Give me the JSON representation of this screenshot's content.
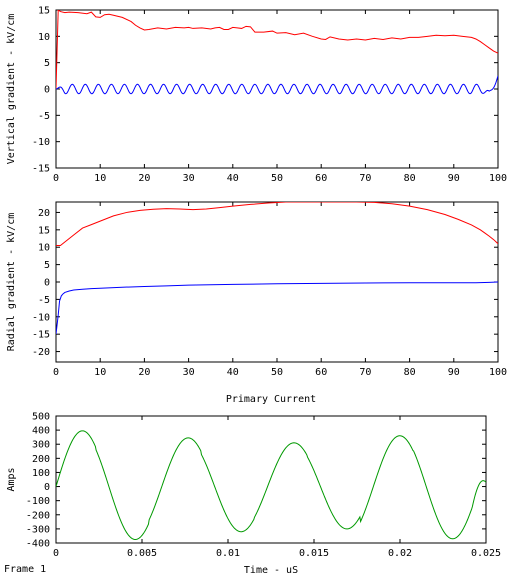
{
  "footer": {
    "frame_label": "Frame 1"
  },
  "chart_data": [
    {
      "type": "line",
      "ylabel": "Vertical gradient - kV/cm",
      "xlim": [
        0,
        100
      ],
      "ylim": [
        -15,
        15
      ],
      "xticks": [
        "0",
        "10",
        "20",
        "30",
        "40",
        "50",
        "60",
        "70",
        "80",
        "90",
        "100"
      ],
      "yticks": [
        "15",
        "10",
        "5",
        "0",
        "-5",
        "-10",
        "-15"
      ],
      "grid": false,
      "series": [
        {
          "color": "#ff0000",
          "x": [
            0,
            0.5,
            1,
            2,
            3,
            5,
            7,
            8,
            9,
            10,
            11,
            12,
            13,
            15,
            17,
            18,
            19,
            20,
            21,
            23,
            25,
            27,
            29,
            30,
            31,
            33,
            35,
            36,
            37,
            38,
            39,
            40,
            41,
            42,
            43,
            44,
            45,
            47,
            49,
            50,
            52,
            54,
            56,
            58,
            60,
            61,
            62,
            64,
            66,
            68,
            70,
            72,
            74,
            76,
            78,
            80,
            82,
            84,
            86,
            88,
            90,
            92,
            94,
            95,
            96,
            97,
            98,
            99,
            100
          ],
          "y": [
            0,
            15,
            14.7,
            14.5,
            14.6,
            14.5,
            14.3,
            14.6,
            13.7,
            13.6,
            14.1,
            14.2,
            14.0,
            13.6,
            12.8,
            12.1,
            11.6,
            11.2,
            11.3,
            11.6,
            11.4,
            11.7,
            11.6,
            11.7,
            11.5,
            11.6,
            11.4,
            11.6,
            11.7,
            11.3,
            11.3,
            11.7,
            11.6,
            11.5,
            11.9,
            11.8,
            10.8,
            10.8,
            11.0,
            10.6,
            10.7,
            10.3,
            10.6,
            10.0,
            9.5,
            9.4,
            9.9,
            9.5,
            9.3,
            9.5,
            9.3,
            9.6,
            9.4,
            9.7,
            9.5,
            9.8,
            9.8,
            10.0,
            10.2,
            10.1,
            10.2,
            10.0,
            9.8,
            9.5,
            9.0,
            8.4,
            7.8,
            7.2,
            6.8
          ]
        },
        {
          "color": "#0000ff",
          "func": "oscillation",
          "base": 0,
          "amplitude": 0.9,
          "period": 2.95,
          "end_dip": -1.7,
          "end_value": 2.5
        }
      ]
    },
    {
      "type": "line",
      "ylabel": "Radial gradient - kV/cm",
      "xlim": [
        0,
        100
      ],
      "ylim": [
        -23,
        23
      ],
      "xticks": [
        "0",
        "10",
        "20",
        "30",
        "40",
        "50",
        "60",
        "70",
        "80",
        "90",
        "100"
      ],
      "yticks": [
        "20",
        "15",
        "10",
        "5",
        "0",
        "-5",
        "-10",
        "-15",
        "-20"
      ],
      "grid": false,
      "series": [
        {
          "color": "#ff0000",
          "x": [
            0,
            1,
            2,
            4,
            6,
            8,
            10,
            13,
            16,
            19,
            22,
            25,
            28,
            31,
            34,
            37,
            40,
            44,
            48,
            52,
            56,
            60,
            64,
            68,
            72,
            76,
            80,
            84,
            88,
            91,
            94,
            96,
            97,
            98,
            99,
            100
          ],
          "y": [
            10.5,
            10.5,
            11.5,
            13.5,
            15.5,
            16.5,
            17.5,
            19.0,
            20.0,
            20.6,
            20.9,
            21.1,
            21.0,
            20.8,
            21.0,
            21.4,
            21.8,
            22.3,
            22.7,
            23.0,
            23.0,
            23.0,
            23.0,
            23.0,
            22.9,
            22.5,
            21.8,
            20.8,
            19.4,
            18.0,
            16.4,
            15.0,
            14.1,
            13.2,
            12.2,
            11.0
          ]
        },
        {
          "color": "#0000ff",
          "x": [
            0,
            0.5,
            0.8,
            1.2,
            1.6,
            2,
            3,
            4,
            6,
            8,
            10,
            15,
            20,
            25,
            30,
            35,
            40,
            50,
            60,
            70,
            80,
            90,
            95,
            98,
            100
          ],
          "y": [
            -15,
            -9.5,
            -5.5,
            -4.0,
            -3.4,
            -3.0,
            -2.6,
            -2.3,
            -2.1,
            -1.9,
            -1.8,
            -1.5,
            -1.3,
            -1.1,
            -0.9,
            -0.8,
            -0.7,
            -0.5,
            -0.4,
            -0.3,
            -0.2,
            -0.2,
            -0.2,
            -0.1,
            0
          ]
        }
      ]
    },
    {
      "type": "line",
      "title": "Primary Current",
      "xlabel": "Time - uS",
      "ylabel": "Amps",
      "xlim": [
        0,
        0.025
      ],
      "ylim": [
        -400,
        500
      ],
      "xticks": [
        "0",
        "0.005",
        "0.01",
        "0.015",
        "0.02",
        "0.025"
      ],
      "yticks": [
        "500",
        "400",
        "300",
        "200",
        "100",
        "0",
        "-100",
        "-200",
        "-300",
        "-400"
      ],
      "grid": false,
      "series": [
        {
          "color": "#009900",
          "func": "damped_sine",
          "peaks": [
            395,
            -375,
            345,
            -320,
            310,
            -300,
            360,
            -370
          ],
          "period": 0.00615,
          "start": 0,
          "end_value": 30
        }
      ]
    }
  ]
}
